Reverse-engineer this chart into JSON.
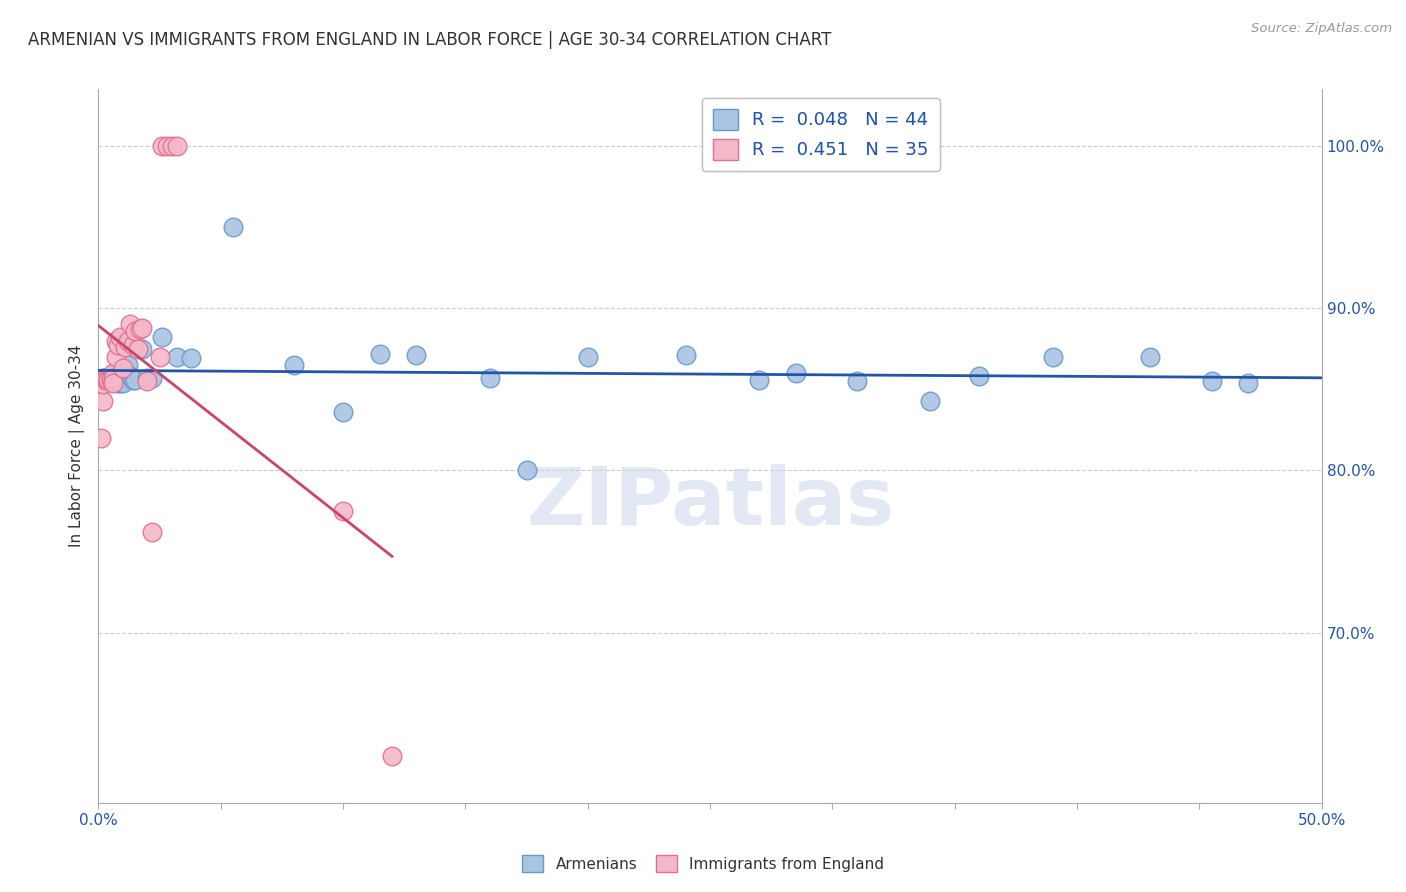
{
  "title": "ARMENIAN VS IMMIGRANTS FROM ENGLAND IN LABOR FORCE | AGE 30-34 CORRELATION CHART",
  "source": "Source: ZipAtlas.com",
  "ylabel": "In Labor Force | Age 30-34",
  "watermark": "ZIPatlas",
  "blue_color": "#aac4e4",
  "blue_edge": "#6699cc",
  "pink_color": "#f5b8c8",
  "pink_edge": "#e07090",
  "blue_line": "#2255aa",
  "pink_line": "#cc4466",
  "xlim": [
    0.0,
    0.5
  ],
  "ylim": [
    0.595,
    1.035
  ],
  "yticks": [
    0.7,
    0.8,
    0.9,
    1.0
  ],
  "xtick_minor": [
    0.05,
    0.1,
    0.15,
    0.2,
    0.25,
    0.3,
    0.35,
    0.4,
    0.45,
    0.5
  ],
  "armenians_x": [
    0.001,
    0.002,
    0.002,
    0.003,
    0.003,
    0.004,
    0.005,
    0.005,
    0.006,
    0.007,
    0.008,
    0.008,
    0.009,
    0.01,
    0.01,
    0.011,
    0.012,
    0.013,
    0.014,
    0.015,
    0.018,
    0.02,
    0.022,
    0.026,
    0.032,
    0.038,
    0.055,
    0.08,
    0.1,
    0.115,
    0.16,
    0.2,
    0.24,
    0.285,
    0.31,
    0.36,
    0.39,
    0.43,
    0.455,
    0.47,
    0.13,
    0.175,
    0.27,
    0.34
  ],
  "armenians_y": [
    0.856,
    0.857,
    0.857,
    0.857,
    0.857,
    0.857,
    0.857,
    0.857,
    0.857,
    0.86,
    0.857,
    0.854,
    0.854,
    0.857,
    0.854,
    0.86,
    0.865,
    0.858,
    0.856,
    0.856,
    0.875,
    0.857,
    0.857,
    0.882,
    0.87,
    0.869,
    0.95,
    0.865,
    0.836,
    0.872,
    0.857,
    0.87,
    0.871,
    0.86,
    0.855,
    0.858,
    0.87,
    0.87,
    0.855,
    0.854,
    0.871,
    0.8,
    0.856,
    0.843
  ],
  "england_x": [
    0.001,
    0.002,
    0.002,
    0.003,
    0.003,
    0.003,
    0.004,
    0.004,
    0.005,
    0.005,
    0.006,
    0.006,
    0.006,
    0.007,
    0.007,
    0.008,
    0.009,
    0.01,
    0.011,
    0.012,
    0.013,
    0.014,
    0.015,
    0.016,
    0.017,
    0.018,
    0.02,
    0.022,
    0.025,
    0.026,
    0.028,
    0.03,
    0.032,
    0.1,
    0.12
  ],
  "england_y": [
    0.82,
    0.843,
    0.853,
    0.856,
    0.857,
    0.857,
    0.857,
    0.856,
    0.856,
    0.857,
    0.86,
    0.857,
    0.854,
    0.87,
    0.88,
    0.877,
    0.882,
    0.863,
    0.876,
    0.88,
    0.89,
    0.877,
    0.886,
    0.875,
    0.887,
    0.888,
    0.855,
    0.762,
    0.87,
    1.0,
    1.0,
    1.0,
    1.0,
    0.775,
    0.624
  ]
}
